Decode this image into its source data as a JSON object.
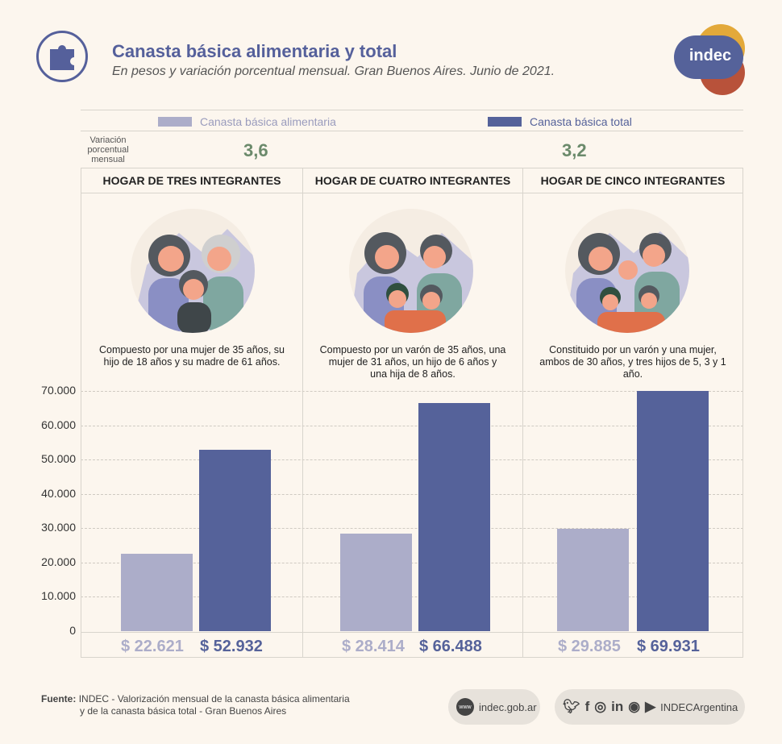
{
  "header": {
    "title": "Canasta básica alimentaria y total",
    "subtitle": "En pesos y variación porcentual mensual. Gran Buenos Aires. Junio de 2021.",
    "logo_text": "indec",
    "icon": "puzzle-icon"
  },
  "legend": {
    "alimentaria": "Canasta básica alimentaria",
    "total": "Canasta básica total"
  },
  "variation": {
    "label": "Variación porcentual mensual",
    "alimentaria": "3,6",
    "total": "3,2"
  },
  "households": [
    {
      "title": "HOGAR DE TRES INTEGRANTES",
      "description": "Compuesto por una mujer de 35 años, su hijo de 18 años y su madre de 61 años.",
      "cba_label": "$ 22.621",
      "cbt_label": "$ 52.932"
    },
    {
      "title": "HOGAR DE CUATRO INTEGRANTES",
      "description": "Compuesto por un varón de 35 años, una mujer de 31 años, un hijo de 6 años y una hija de 8 años.",
      "cba_label": "$ 28.414",
      "cbt_label": "$ 66.488"
    },
    {
      "title": "HOGAR DE CINCO INTEGRANTES",
      "description": "Constituido por un varón y una mujer, ambos de 30 años, y tres hijos de 5, 3 y 1 año.",
      "cba_label": "$ 29.885",
      "cbt_label": "$ 69.931"
    }
  ],
  "y_ticks": [
    "0",
    "10.000",
    "20.000",
    "30.000",
    "40.000",
    "50.000",
    "60.000",
    "70.000"
  ],
  "chart_data": {
    "type": "bar",
    "title": "Canasta básica alimentaria y total",
    "categories": [
      "HOGAR DE TRES INTEGRANTES",
      "HOGAR DE CUATRO INTEGRANTES",
      "HOGAR DE CINCO INTEGRANTES"
    ],
    "series": [
      {
        "name": "Canasta básica alimentaria",
        "values": [
          22621,
          28414,
          29885
        ]
      },
      {
        "name": "Canasta básica total",
        "values": [
          52932,
          66488,
          69931
        ]
      }
    ],
    "ylim": [
      0,
      70000
    ],
    "grid": true,
    "legend": "top"
  },
  "colors": {
    "alimentaria": "#acadc9",
    "total": "#55629a",
    "title": "#55609b",
    "variation": "#6b8a6b",
    "logo_orange": "#e3a93a",
    "logo_red": "#b8523a",
    "logo_blue": "#55629a"
  },
  "footer": {
    "source_label": "Fuente:",
    "source_line1": "INDEC - Valorización mensual de la canasta básica alimentaria",
    "source_line2": "y de la canasta básica total - Gran Buenos Aires",
    "website": "indec.gob.ar",
    "handle": "INDECArgentina",
    "web_icon": "www",
    "social_icons": [
      "twitter-icon",
      "facebook-icon",
      "instagram-icon",
      "linkedin-icon",
      "spotify-icon",
      "youtube-icon"
    ]
  }
}
